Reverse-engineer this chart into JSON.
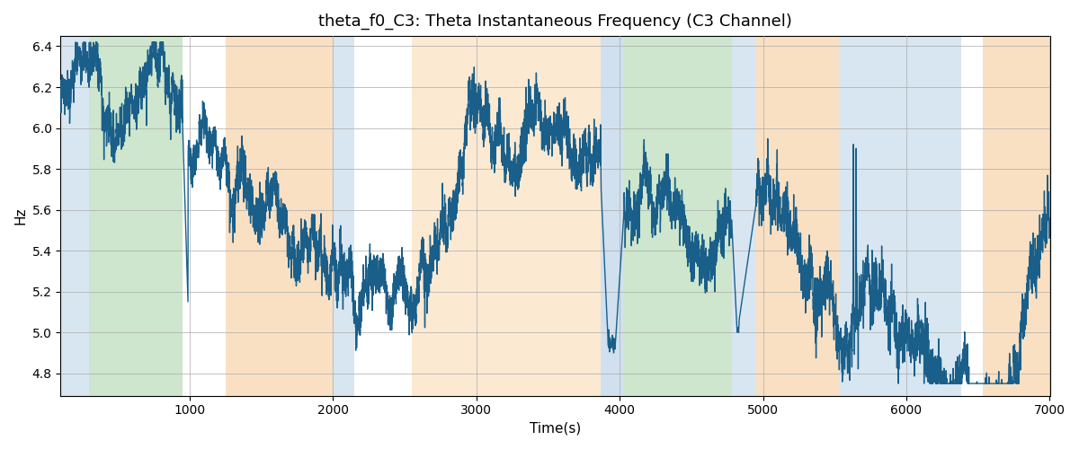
{
  "title": "theta_f0_C3: Theta Instantaneous Frequency (C3 Channel)",
  "xlabel": "Time(s)",
  "ylabel": "Hz",
  "xlim": [
    100,
    7000
  ],
  "ylim": [
    4.69,
    6.45
  ],
  "yticks": [
    4.8,
    5.0,
    5.2,
    5.4,
    5.6,
    5.8,
    6.0,
    6.2,
    6.4
  ],
  "xticks": [
    1000,
    2000,
    3000,
    4000,
    5000,
    6000,
    7000
  ],
  "line_color": "#1a5f8a",
  "line_width": 1.0,
  "background_color": "#ffffff",
  "grid_color": "#aaaaaa",
  "colored_bands": [
    {
      "xmin": 100,
      "xmax": 300,
      "color": "#aac8e0",
      "alpha": 0.45
    },
    {
      "xmin": 300,
      "xmax": 950,
      "color": "#90c890",
      "alpha": 0.45
    },
    {
      "xmin": 1250,
      "xmax": 2000,
      "color": "#f5c890",
      "alpha": 0.55
    },
    {
      "xmin": 2000,
      "xmax": 2150,
      "color": "#aac8e0",
      "alpha": 0.45
    },
    {
      "xmin": 2550,
      "xmax": 3870,
      "color": "#f5c890",
      "alpha": 0.4
    },
    {
      "xmin": 3870,
      "xmax": 4030,
      "color": "#aac8e0",
      "alpha": 0.55
    },
    {
      "xmin": 4030,
      "xmax": 4780,
      "color": "#90c890",
      "alpha": 0.45
    },
    {
      "xmin": 4780,
      "xmax": 4950,
      "color": "#aac8e0",
      "alpha": 0.45
    },
    {
      "xmin": 4950,
      "xmax": 5530,
      "color": "#f5c890",
      "alpha": 0.55
    },
    {
      "xmin": 5530,
      "xmax": 6380,
      "color": "#aac8e0",
      "alpha": 0.45
    },
    {
      "xmin": 6530,
      "xmax": 7000,
      "color": "#f5c890",
      "alpha": 0.55
    }
  ],
  "seed": 17,
  "n_points": 6900
}
